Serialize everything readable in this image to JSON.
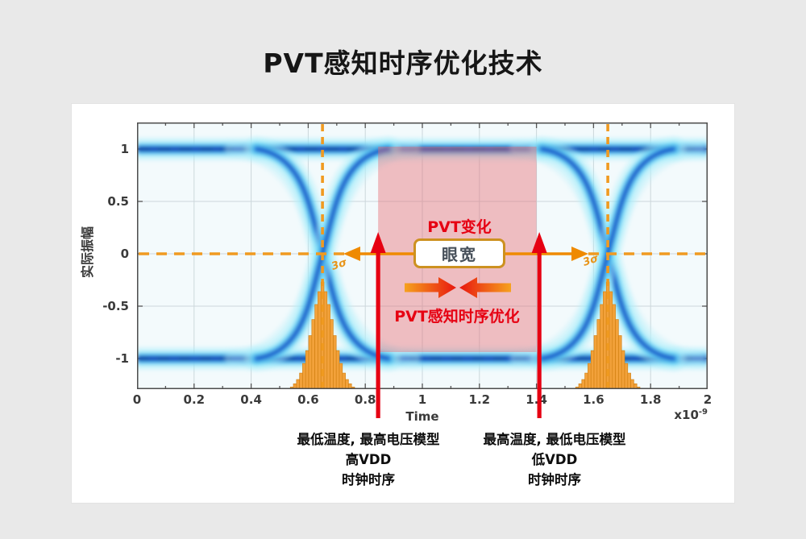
{
  "title": "PVT感知时序优化技术",
  "chart_data": {
    "type": "eye_diagram",
    "xlabel": "Time",
    "x_exponent": {
      "base": "x10",
      "power": "-9"
    },
    "ylabel": "实际振幅",
    "x_ticks": [
      {
        "label": "0",
        "value": 0
      },
      {
        "label": "0.2",
        "value": 0.2
      },
      {
        "label": "0.4",
        "value": 0.4
      },
      {
        "label": "0.6",
        "value": 0.6
      },
      {
        "label": "0.8",
        "value": 0.8
      },
      {
        "label": "1",
        "value": 1
      },
      {
        "label": "1.2",
        "value": 1.2
      },
      {
        "label": "1.4",
        "value": 1.4
      },
      {
        "label": "1.6",
        "value": 1.6
      },
      {
        "label": "1.8",
        "value": 1.8
      },
      {
        "label": "2",
        "value": 2
      }
    ],
    "y_ticks": [
      {
        "label": "1",
        "value": 1
      },
      {
        "label": "0.5",
        "value": 0.5
      },
      {
        "label": "0",
        "value": 0
      },
      {
        "label": "-0.5",
        "value": -0.5
      },
      {
        "label": "-1",
        "value": -1
      }
    ],
    "x_range_ns": [
      0,
      2
    ],
    "y_range": [
      -1.3,
      1.3
    ],
    "signal_levels": [
      1,
      -1
    ],
    "eye_crossings_ns": [
      0.65,
      1.65
    ],
    "crossing_sigma_label": "3σ",
    "jitter_histograms": {
      "centers_ns": [
        0.65,
        1.65
      ],
      "relative_heights": [
        0.02,
        0.05,
        0.09,
        0.15,
        0.24,
        0.36,
        0.5,
        0.65,
        0.79,
        0.91,
        1.0,
        0.91,
        0.79,
        0.65,
        0.5,
        0.36,
        0.24,
        0.15,
        0.09,
        0.05,
        0.02
      ]
    },
    "grid": true
  },
  "annotations": {
    "pvt_variation_label": "PVT变化",
    "eye_width_label": "眼宽",
    "pvt_optimization_label": "PVT感知时序优化",
    "shaded_region_ns": [
      0.845,
      1.4
    ],
    "timing_arrows_ns": [
      0.845,
      1.41
    ],
    "left_condition": {
      "line1": "最低温度, 最高电压模型",
      "line2": "高VDD",
      "line3": "时钟时序"
    },
    "right_condition": {
      "line1": "最高温度, 最低电压模型",
      "line2": "低VDD",
      "line3": "时钟时序"
    }
  },
  "colors": {
    "page_background": "#e9e9e9",
    "panel_background": "#ffffff",
    "plot_background": "#f3fafc",
    "grid_line": "#ccd7db",
    "trace_navy": "#0c2fb0",
    "trace_blue": "#1f7ae8",
    "trace_cyan": "#55d4f4",
    "trace_pale_cyan": "#aeeffb",
    "histogram_orange": "#f2a13a",
    "histogram_edge": "#cf7e0e",
    "marker_orange": "#ef8a00",
    "dashed_orange": "#f09a20",
    "alert_red": "#e60012",
    "shade_pink": "rgba(231,106,112,0.42)",
    "eye_box_border": "#cd9120",
    "eye_box_text": "#47505a",
    "axis_text": "#3a3a3a",
    "title_text": "#161616"
  }
}
